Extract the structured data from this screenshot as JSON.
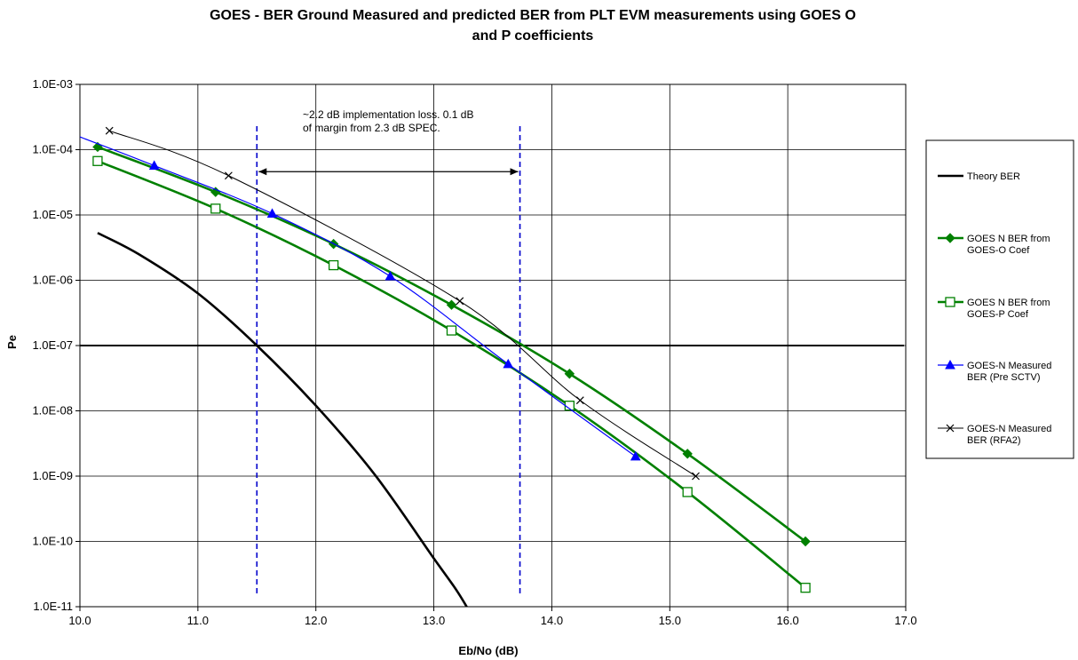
{
  "chart_data": {
    "type": "line",
    "title_line1": "GOES -  BER Ground Measured and predicted BER from PLT EVM measurements using GOES O",
    "title_line2": "and P coefficients",
    "xlabel": "Eb/No (dB)",
    "ylabel": "Pe",
    "xlim": [
      10.0,
      17.0
    ],
    "ylim": [
      1e-11,
      0.001
    ],
    "y_scale": "log",
    "grid": true,
    "x_ticks": [
      "10.0",
      "11.0",
      "12.0",
      "13.0",
      "14.0",
      "15.0",
      "16.0",
      "17.0"
    ],
    "y_ticks": [
      "1.0E-03",
      "1.0E-04",
      "1.0E-05",
      "1.0E-06",
      "1.0E-07",
      "1.0E-08",
      "1.0E-09",
      "1.0E-10",
      "1.0E-11"
    ],
    "legend_position": "right",
    "series": [
      {
        "name": "Theory BER",
        "legend_lines": [
          "Theory BER"
        ],
        "color": "#000000",
        "marker": "none",
        "points": [
          [
            10.15,
            5.3e-06
          ],
          [
            10.5,
            2.5e-06
          ],
          [
            11.0,
            6.3e-07
          ],
          [
            11.5,
            1e-07
          ],
          [
            12.0,
            1.2e-08
          ],
          [
            12.5,
            1.05e-09
          ],
          [
            13.0,
            5.5e-11
          ],
          [
            13.2,
            1.7e-11
          ],
          [
            13.35,
            6e-12
          ]
        ]
      },
      {
        "name": "GOES N BER from GOES-O Coef",
        "legend_lines": [
          "GOES N BER from",
          "GOES-O Coef"
        ],
        "color": "#008000",
        "marker": "diamond",
        "points": [
          [
            10.15,
            0.00011
          ],
          [
            11.15,
            2.25e-05
          ],
          [
            12.15,
            3.6e-06
          ],
          [
            13.15,
            4.2e-07
          ],
          [
            14.15,
            3.7e-08
          ],
          [
            15.15,
            2.2e-09
          ],
          [
            16.15,
            1e-10
          ]
        ]
      },
      {
        "name": "GOES N BER from GOES-P Coef",
        "legend_lines": [
          "GOES N BER from",
          "GOES-P Coef"
        ],
        "color": "#008000",
        "marker": "square-open",
        "points": [
          [
            10.15,
            6.7e-05
          ],
          [
            11.15,
            1.25e-05
          ],
          [
            12.15,
            1.7e-06
          ],
          [
            13.15,
            1.7e-07
          ],
          [
            14.15,
            1.2e-08
          ],
          [
            15.15,
            5.7e-10
          ],
          [
            16.15,
            1.95e-11
          ]
        ]
      },
      {
        "name": "GOES-N Measured BER (Pre SCTV)",
        "legend_lines": [
          "GOES-N Measured",
          "BER (Pre SCTV)"
        ],
        "color": "#0000ff",
        "marker": "triangle",
        "points": [
          [
            9.95,
            0.00017
          ],
          [
            10.63,
            5.7e-05
          ],
          [
            11.63,
            1.05e-05
          ],
          [
            12.63,
            1.15e-06
          ],
          [
            13.63,
            5.2e-08
          ],
          [
            14.71,
            2e-09
          ]
        ]
      },
      {
        "name": "GOES-N Measured BER (RFA2)",
        "legend_lines": [
          "GOES-N Measured",
          "BER (RFA2)"
        ],
        "color": "#000000",
        "marker": "x",
        "points": [
          [
            10.25,
            0.000195
          ],
          [
            11.26,
            4e-05
          ],
          [
            13.22,
            4.8e-07
          ],
          [
            14.24,
            1.45e-08
          ],
          [
            15.22,
            1e-09
          ]
        ]
      }
    ],
    "reference_lines": [
      {
        "type": "horizontal",
        "y": 1e-07,
        "color": "#000000"
      },
      {
        "type": "vertical",
        "x": 11.5,
        "color": "#0000cc",
        "style": "dashed",
        "y_range": [
          1.6e-11,
          0.00025
        ]
      },
      {
        "type": "vertical",
        "x": 13.73,
        "color": "#0000cc",
        "style": "dashed",
        "y_range": [
          1.6e-11,
          0.00025
        ]
      }
    ],
    "annotation": {
      "lines": [
        "~2.2 dB implementation loss. 0.1 dB",
        "of margin from 2.3 dB SPEC."
      ],
      "arrow_from_x": 11.5,
      "arrow_to_x": 13.73,
      "arrow_y": 4.6e-05
    }
  }
}
